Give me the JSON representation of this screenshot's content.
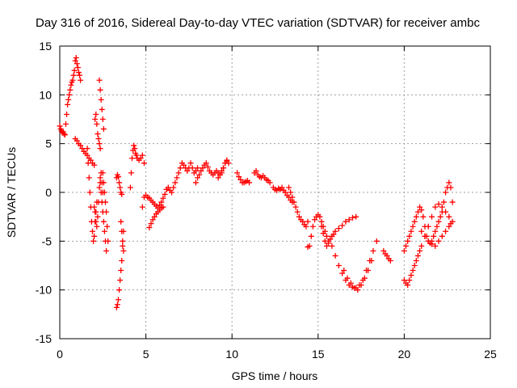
{
  "chart_data": {
    "type": "scatter",
    "title": "Day 316 of 2016, Sidereal Day-to-day VTEC variation (SDTVAR) for receiver ambc",
    "xlabel": "GPS time / hours",
    "ylabel": "SDTVAR / TECUs",
    "xlim": [
      0,
      25
    ],
    "ylim": [
      -15,
      15
    ],
    "x_ticks": [
      0,
      5,
      10,
      15,
      20,
      25
    ],
    "y_ticks": [
      -15,
      -10,
      -5,
      0,
      5,
      10,
      15
    ],
    "x_tick_labels": [
      "0",
      "5",
      "10",
      "15",
      "20",
      "25"
    ],
    "y_tick_labels": [
      "-15",
      "-10",
      "-5",
      "0",
      "5",
      "10",
      "15"
    ],
    "grid": true,
    "marker": "+",
    "color": "#ff0000",
    "series": [
      {
        "name": "SDTVAR",
        "segments": [
          {
            "x": [
              0.0,
              0.05,
              0.1,
              0.15,
              0.2,
              0.25,
              0.3
            ],
            "y": [
              6.8,
              6.5,
              6.3,
              6.1,
              6.2,
              6.0,
              5.9
            ]
          },
          {
            "x": [
              0.35,
              0.4,
              0.45,
              0.5,
              0.55,
              0.6,
              0.65,
              0.7,
              0.75,
              0.8,
              0.85,
              0.9,
              0.95,
              1.0,
              1.05,
              1.1,
              1.15,
              1.2
            ],
            "y": [
              7.0,
              8.0,
              9.0,
              9.5,
              10.0,
              10.5,
              11.0,
              11.3,
              11.5,
              12.0,
              12.5,
              13.5,
              13.8,
              13.2,
              12.8,
              12.3,
              12.0,
              11.5
            ]
          },
          {
            "x": [
              0.9,
              1.0,
              1.1,
              1.2,
              1.3,
              1.4,
              1.5,
              1.6,
              1.7,
              1.8,
              1.9,
              2.0
            ],
            "y": [
              5.5,
              5.3,
              5.0,
              4.8,
              4.5,
              4.2,
              4.0,
              3.8,
              3.5,
              3.3,
              3.0,
              2.8
            ]
          },
          {
            "x": [
              1.6,
              1.65,
              1.7,
              1.75,
              1.8,
              1.85,
              1.9,
              1.95,
              2.0,
              2.05,
              2.1,
              2.15
            ],
            "y": [
              4.5,
              3.0,
              1.5,
              0.0,
              -1.5,
              -3.0,
              -4.0,
              -5.0,
              -4.5,
              -3.0,
              -2.0,
              -1.0
            ]
          },
          {
            "x": [
              2.0,
              2.05,
              2.1,
              2.15,
              2.2,
              2.25,
              2.3,
              2.35,
              2.4,
              2.45,
              2.5
            ],
            "y": [
              -1.5,
              -2.0,
              -3.0,
              -3.5,
              -2.5,
              -1.0,
              0.5,
              1.5,
              2.0,
              1.0,
              0.0
            ]
          },
          {
            "x": [
              2.05,
              2.1,
              2.15,
              2.2,
              2.25,
              2.3,
              2.35
            ],
            "y": [
              7.5,
              8.0,
              7.0,
              6.0,
              5.5,
              5.0,
              4.5
            ]
          },
          {
            "x": [
              2.3,
              2.35,
              2.4,
              2.45,
              2.5,
              2.55
            ],
            "y": [
              11.5,
              10.5,
              9.5,
              8.5,
              7.5,
              6.5
            ]
          },
          {
            "x": [
              2.35,
              2.4,
              2.45,
              2.5,
              2.55,
              2.6,
              2.65,
              2.7
            ],
            "y": [
              1.0,
              0.0,
              -1.0,
              -2.0,
              -3.0,
              -4.0,
              -5.0,
              -6.0
            ]
          },
          {
            "x": [
              2.5,
              2.55,
              2.6,
              2.65,
              2.7,
              2.75,
              2.8
            ],
            "y": [
              2.0,
              1.0,
              0.0,
              -1.0,
              -2.0,
              -3.5,
              -5.0
            ]
          },
          {
            "x": [
              3.3,
              3.35,
              3.4,
              3.45,
              3.5,
              3.55,
              3.6,
              3.65,
              3.7
            ],
            "y": [
              -11.8,
              -11.5,
              -11.0,
              -10.0,
              -9.0,
              -8.0,
              -7.0,
              -5.5,
              -4.0
            ]
          },
          {
            "x": [
              3.55,
              3.6,
              3.65,
              3.7
            ],
            "y": [
              -3.0,
              -4.0,
              -5.0,
              -6.0
            ]
          },
          {
            "x": [
              3.3,
              3.35,
              3.4,
              3.45,
              3.5,
              3.55,
              3.6
            ],
            "y": [
              1.5,
              1.8,
              1.6,
              1.0,
              0.5,
              0.0,
              -0.2
            ]
          },
          {
            "x": [
              4.1,
              4.15,
              4.2,
              4.25,
              4.3,
              4.35,
              4.4,
              4.45,
              4.5,
              4.6,
              4.7,
              4.8,
              4.9
            ],
            "y": [
              0.5,
              2.0,
              3.5,
              4.3,
              4.8,
              4.5,
              4.0,
              3.8,
              3.5,
              3.3,
              3.5,
              3.8,
              3.0
            ]
          },
          {
            "x": [
              4.8,
              4.9,
              5.0,
              5.1,
              5.2,
              5.3,
              5.4,
              5.5,
              5.6,
              5.7,
              5.8,
              5.9,
              6.0,
              6.1,
              6.2
            ],
            "y": [
              -1.5,
              -0.5,
              -0.3,
              -0.5,
              -0.6,
              -0.8,
              -1.0,
              -1.2,
              -1.4,
              -1.6,
              -1.3,
              -1.0,
              -0.6,
              -0.2,
              0.3
            ]
          },
          {
            "x": [
              5.2,
              5.3,
              5.4,
              5.5,
              5.6,
              5.7,
              5.8,
              5.9,
              6.0
            ],
            "y": [
              -3.6,
              -3.2,
              -2.8,
              -2.5,
              -2.2,
              -2.0,
              -1.8,
              -1.6,
              -1.5
            ]
          },
          {
            "x": [
              6.2,
              6.3,
              6.4,
              6.5,
              6.6,
              6.7,
              6.8,
              6.9,
              7.0,
              7.1,
              7.2,
              7.3,
              7.4,
              7.5,
              7.6,
              7.7,
              7.8,
              7.9,
              8.0
            ],
            "y": [
              0.3,
              0.5,
              0.2,
              0.0,
              0.5,
              1.0,
              1.5,
              2.0,
              2.5,
              3.0,
              2.8,
              2.5,
              2.2,
              2.5,
              3.0,
              2.5,
              2.0,
              2.2,
              2.5
            ]
          },
          {
            "x": [
              7.9,
              8.0,
              8.1,
              8.2,
              8.3,
              8.4,
              8.5,
              8.6,
              8.7,
              8.8,
              8.9,
              9.0,
              9.1,
              9.2,
              9.3,
              9.4,
              9.5,
              9.6,
              9.7
            ],
            "y": [
              1.0,
              1.5,
              1.8,
              2.2,
              2.5,
              2.8,
              3.0,
              2.6,
              2.2,
              2.0,
              1.8,
              2.0,
              2.2,
              2.0,
              1.8,
              2.0,
              2.5,
              3.0,
              3.2
            ]
          },
          {
            "x": [
              9.2,
              9.3,
              9.4,
              9.5,
              9.6,
              9.7,
              9.8
            ],
            "y": [
              1.5,
              1.8,
              2.2,
              2.5,
              3.0,
              3.3,
              3.0
            ]
          },
          {
            "x": [
              10.3,
              10.4,
              10.5,
              10.6,
              10.7,
              10.8,
              10.9,
              11.0
            ],
            "y": [
              2.0,
              1.6,
              1.3,
              1.0,
              1.0,
              1.1,
              1.2,
              1.0
            ]
          },
          {
            "x": [
              11.3,
              11.4,
              11.5,
              11.6,
              11.7,
              11.8,
              11.9,
              12.0,
              12.1,
              12.2
            ],
            "y": [
              2.0,
              2.2,
              1.8,
              1.6,
              1.5,
              1.7,
              1.5,
              1.3,
              1.2,
              1.0
            ]
          },
          {
            "x": [
              12.4,
              12.5,
              12.6,
              12.7,
              12.8,
              12.9,
              13.0,
              13.1,
              13.2,
              13.3,
              13.4,
              13.5
            ],
            "y": [
              0.5,
              0.3,
              0.2,
              0.4,
              0.3,
              0.5,
              0.2,
              0.0,
              -0.3,
              -0.5,
              -0.8,
              -1.0
            ]
          },
          {
            "x": [
              13.3,
              13.4,
              13.5,
              13.6,
              13.7,
              13.8,
              13.9,
              14.0,
              14.1,
              14.2,
              14.3,
              14.4
            ],
            "y": [
              0.5,
              0.0,
              -0.5,
              -1.0,
              -1.5,
              -2.0,
              -2.5,
              -2.8,
              -3.0,
              -3.3,
              -3.5,
              -3.0
            ]
          },
          {
            "x": [
              14.4,
              14.5,
              14.6,
              14.7,
              14.8,
              14.9,
              15.0,
              15.1,
              15.2,
              15.3,
              15.4,
              15.5
            ],
            "y": [
              -5.6,
              -5.5,
              -4.5,
              -3.5,
              -2.8,
              -2.5,
              -2.3,
              -2.5,
              -3.0,
              -3.5,
              -4.0,
              -4.5
            ]
          },
          {
            "x": [
              15.2,
              15.3,
              15.4,
              15.5,
              15.6,
              15.7,
              15.8,
              15.9,
              16.0,
              16.2,
              16.4,
              16.6,
              16.8,
              17.0,
              17.2
            ],
            "y": [
              -3.5,
              -4.2,
              -5.0,
              -5.5,
              -5.2,
              -4.8,
              -4.5,
              -4.3,
              -4.0,
              -3.7,
              -3.4,
              -3.0,
              -2.8,
              -2.6,
              -2.5
            ]
          },
          {
            "x": [
              15.6,
              15.8,
              16.0,
              16.2,
              16.4,
              16.6,
              16.8,
              17.0,
              17.2,
              17.4,
              17.6,
              17.8,
              18.0,
              18.2,
              18.4
            ],
            "y": [
              -5.0,
              -5.5,
              -6.5,
              -7.5,
              -8.3,
              -9.0,
              -9.5,
              -9.7,
              -9.8,
              -9.5,
              -9.0,
              -8.0,
              -7.0,
              -6.0,
              -5.0
            ]
          },
          {
            "x": [
              16.5,
              16.7,
              16.9,
              17.1,
              17.3,
              17.5,
              17.7,
              17.9,
              18.1
            ],
            "y": [
              -8.0,
              -8.8,
              -9.3,
              -9.8,
              -10.0,
              -9.5,
              -8.8,
              -8.0,
              -7.0
            ]
          },
          {
            "x": [
              18.8,
              18.9,
              19.0,
              19.1,
              19.2
            ],
            "y": [
              -6.0,
              -6.3,
              -6.5,
              -6.8,
              -7.0
            ]
          },
          {
            "x": [
              20.0,
              20.1,
              20.2,
              20.3,
              20.4,
              20.5,
              20.6,
              20.7,
              20.8,
              20.9,
              21.0,
              21.2,
              21.4,
              21.6,
              21.8,
              22.0,
              22.2,
              22.4,
              22.6
            ],
            "y": [
              -9.0,
              -9.3,
              -9.5,
              -9.0,
              -8.5,
              -8.0,
              -7.5,
              -7.0,
              -6.5,
              -6.0,
              -5.5,
              -4.5,
              -3.5,
              -2.5,
              -1.5,
              -1.2,
              -1.5,
              -2.0,
              -2.5
            ]
          },
          {
            "x": [
              20.0,
              20.1,
              20.2,
              20.3,
              20.4,
              20.5,
              20.6,
              20.7
            ],
            "y": [
              -6.0,
              -5.5,
              -5.0,
              -4.5,
              -4.0,
              -3.5,
              -3.0,
              -2.5
            ]
          },
          {
            "x": [
              20.8,
              20.9,
              21.0,
              21.1,
              21.2,
              21.3,
              21.4,
              21.5,
              21.6,
              21.7,
              21.8,
              21.9,
              22.0,
              22.1,
              22.2,
              22.3,
              22.4,
              22.5,
              22.6,
              22.7,
              22.8
            ],
            "y": [
              -2.0,
              -1.5,
              -1.8,
              -2.5,
              -3.5,
              -4.5,
              -5.0,
              -5.2,
              -5.0,
              -4.5,
              -4.0,
              -3.5,
              -3.0,
              -2.5,
              -2.0,
              -1.0,
              0.0,
              0.5,
              1.0,
              0.5,
              -1.0
            ]
          },
          {
            "x": [
              21.0,
              21.2,
              21.4,
              21.6,
              21.8,
              22.0,
              22.2,
              22.4,
              22.6,
              22.7,
              22.8
            ],
            "y": [
              -4.0,
              -4.5,
              -5.0,
              -5.3,
              -5.5,
              -5.0,
              -4.5,
              -4.0,
              -3.5,
              -3.2,
              -3.0
            ]
          }
        ]
      }
    ]
  }
}
